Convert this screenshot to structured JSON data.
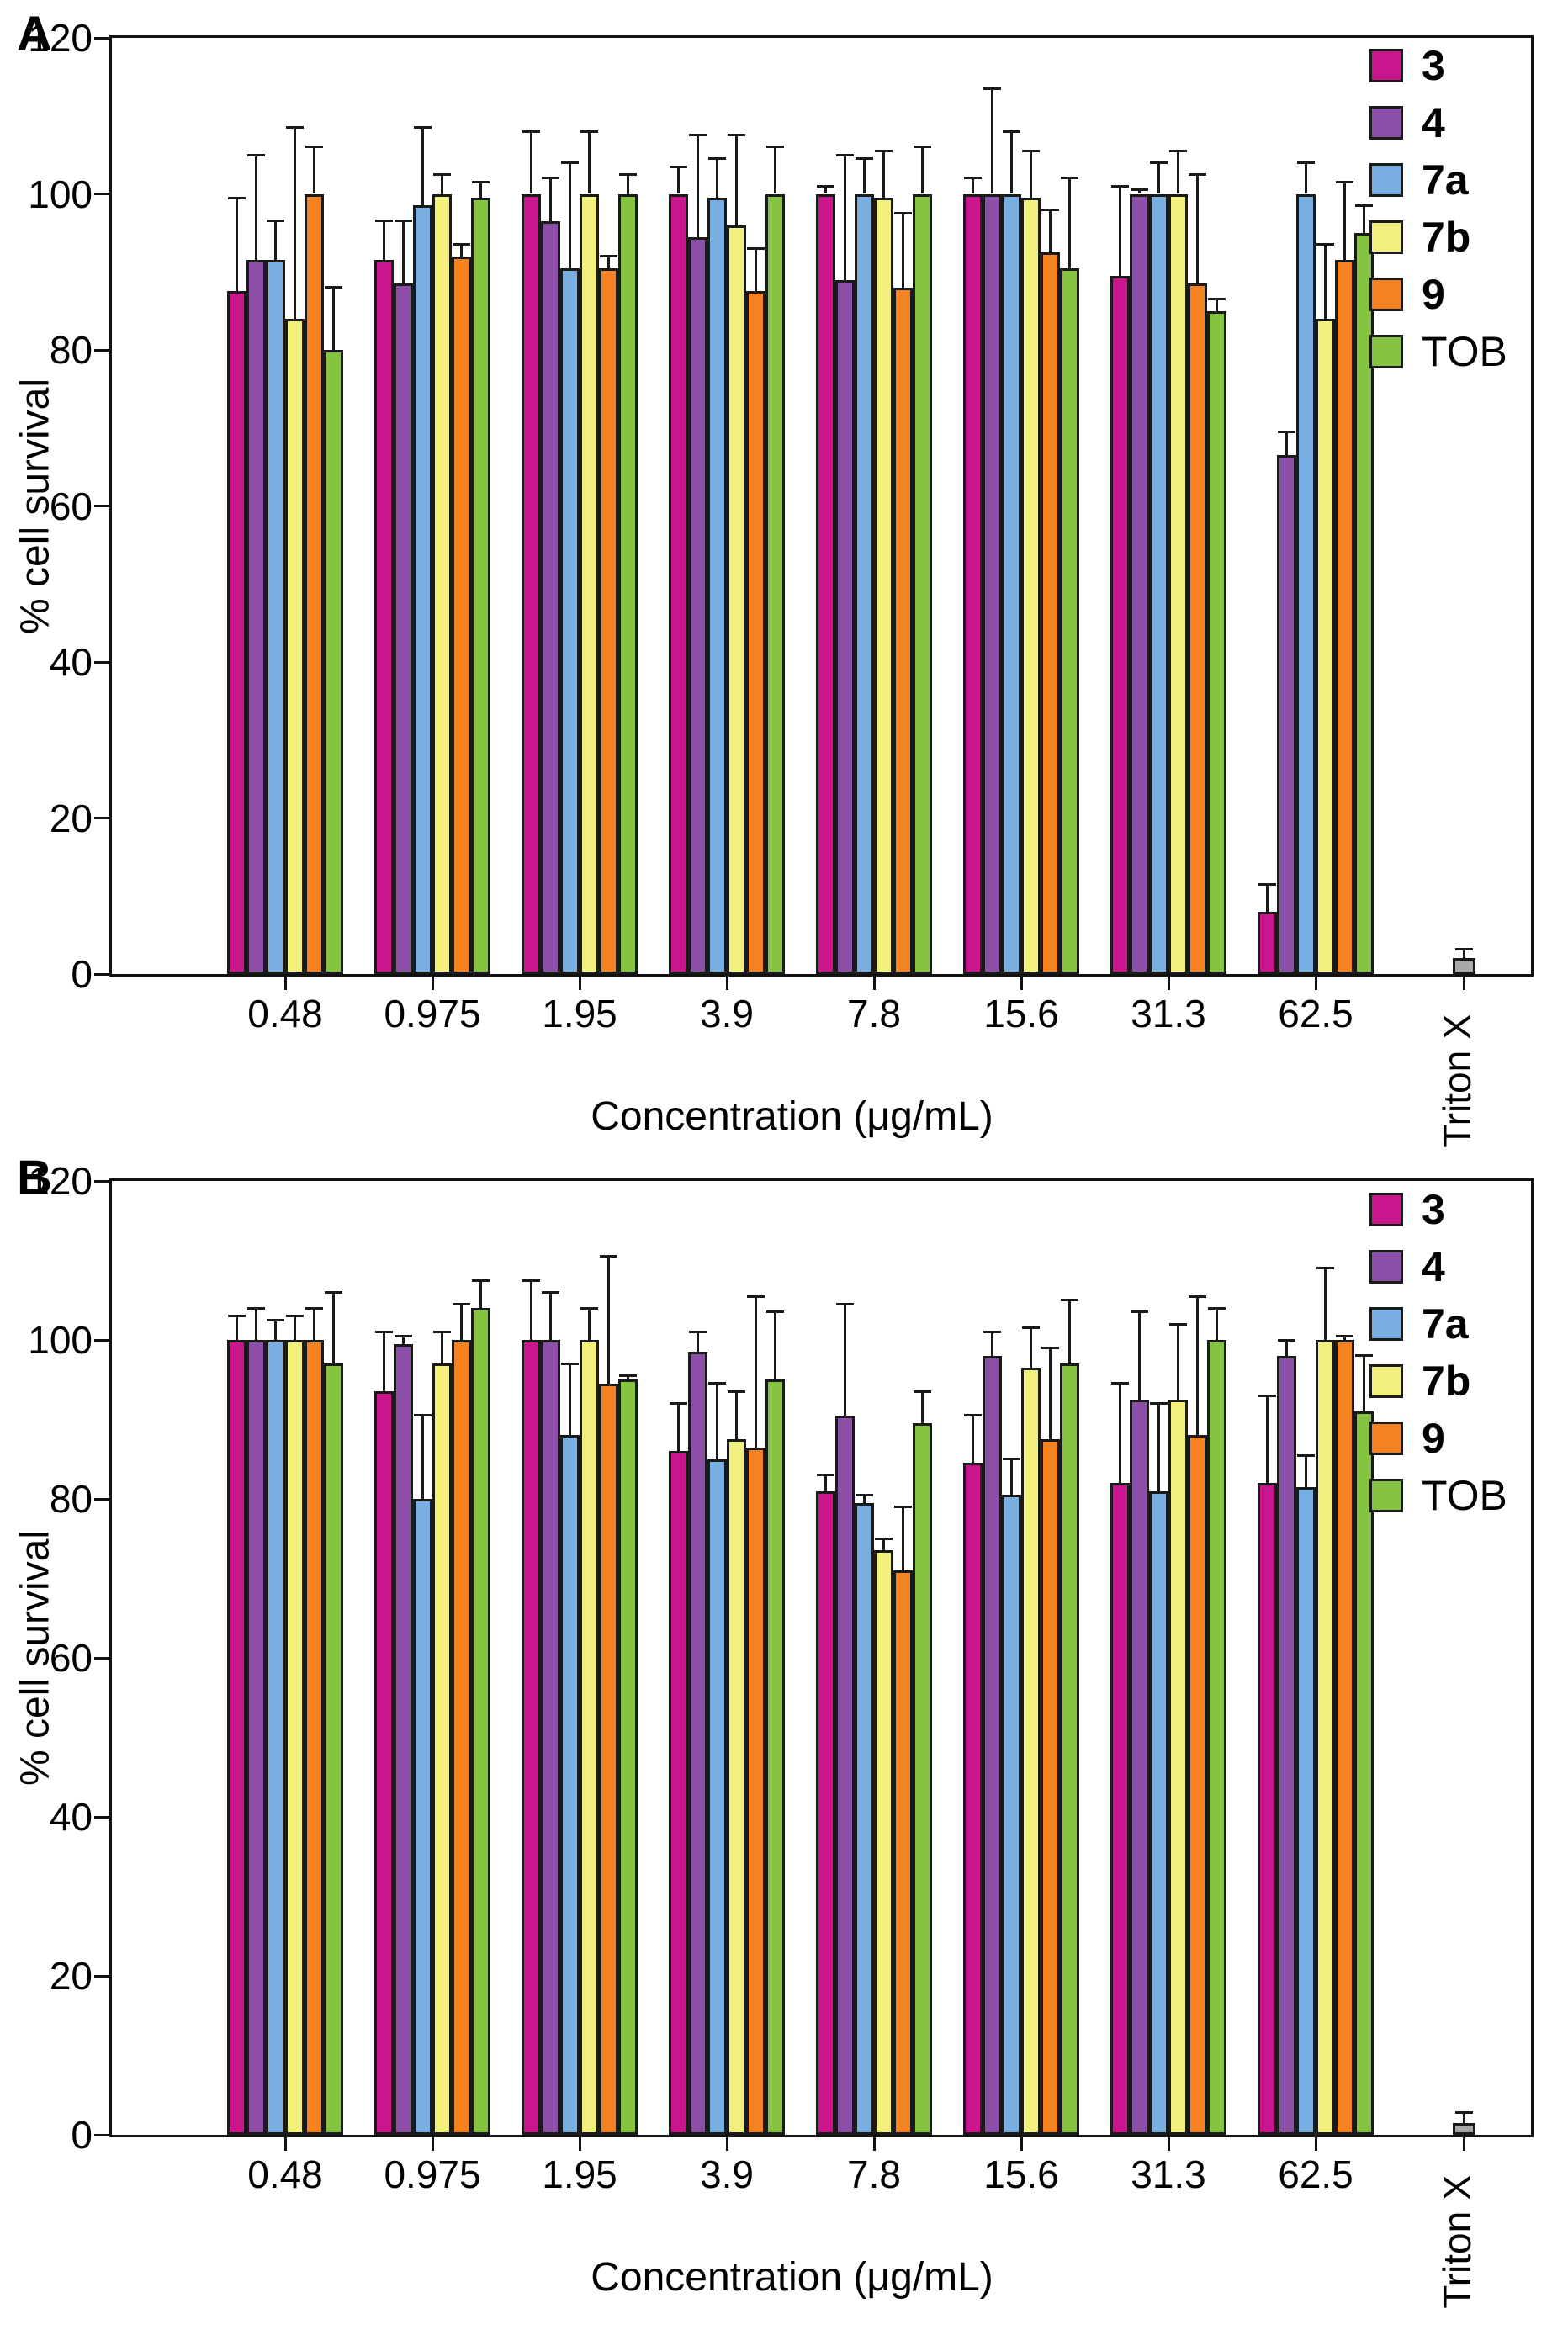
{
  "figure_title": "",
  "chart_data": [
    {
      "type": "bar",
      "panel_label": "A",
      "xlabel": "Concentration (μg/mL)",
      "ylabel": "% cell survival",
      "ylim": [
        0,
        120
      ],
      "yticks": [
        0,
        20,
        40,
        60,
        80,
        100,
        120
      ],
      "grid": false,
      "legend_position": "top-right-inside",
      "error_bars": "upper",
      "categories": [
        "0.48",
        "0.975",
        "1.95",
        "3.9",
        "7.8",
        "15.6",
        "31.3",
        "62.5"
      ],
      "control": {
        "name": "Triton X",
        "value": 2,
        "err_top": 3.2,
        "color": "#A9A9A9"
      },
      "series": [
        {
          "name": "3",
          "color": "#C9168C",
          "bold_label": true,
          "values": [
            87.5,
            91.5,
            100,
            100,
            100,
            100,
            89.5,
            8
          ],
          "err_top": [
            99.5,
            96.5,
            108,
            103.5,
            101,
            102,
            101,
            11.5
          ]
        },
        {
          "name": "4",
          "color": "#8C4FA8",
          "bold_label": true,
          "values": [
            91.5,
            88.5,
            96.5,
            94.5,
            89,
            100,
            100,
            66.5
          ],
          "err_top": [
            105,
            96.5,
            102,
            107.5,
            105,
            113.5,
            100.5,
            69.5
          ]
        },
        {
          "name": "7a",
          "color": "#79AFE0",
          "bold_label": true,
          "values": [
            91.5,
            98.5,
            90.5,
            99.5,
            100,
            100,
            100,
            100
          ],
          "err_top": [
            96.5,
            108.5,
            104,
            104.5,
            104.5,
            108,
            104,
            104
          ]
        },
        {
          "name": "7b",
          "color": "#F2F07D",
          "bold_label": true,
          "values": [
            84,
            100,
            100,
            96,
            99.5,
            99.5,
            100,
            84
          ],
          "err_top": [
            108.5,
            102.5,
            108,
            107.5,
            105.5,
            105.5,
            105.5,
            93.5
          ]
        },
        {
          "name": "9",
          "color": "#F58220",
          "bold_label": true,
          "values": [
            100,
            92,
            90.5,
            87.5,
            88,
            92.5,
            88.5,
            91.5
          ],
          "err_top": [
            106,
            93.5,
            92,
            93,
            97.5,
            98,
            102.5,
            101.5
          ]
        },
        {
          "name": "TOB",
          "color": "#84C441",
          "bold_label": false,
          "values": [
            80,
            99.5,
            100,
            100,
            100,
            90.5,
            85,
            95
          ],
          "err_top": [
            88,
            101.5,
            102.5,
            106,
            106,
            102,
            86.5,
            98.5
          ]
        }
      ]
    },
    {
      "type": "bar",
      "panel_label": "B",
      "xlabel": "Concentration (μg/mL)",
      "ylabel": "% cell survival",
      "ylim": [
        0,
        120
      ],
      "yticks": [
        0,
        20,
        40,
        60,
        80,
        100,
        120
      ],
      "grid": false,
      "legend_position": "top-right-inside",
      "error_bars": "upper",
      "categories": [
        "0.48",
        "0.975",
        "1.95",
        "3.9",
        "7.8",
        "15.6",
        "31.3",
        "62.5"
      ],
      "control": {
        "name": "Triton X",
        "value": 1.5,
        "err_top": 2.8,
        "color": "#A9A9A9"
      },
      "series": [
        {
          "name": "3",
          "color": "#C9168C",
          "bold_label": true,
          "values": [
            100,
            93.5,
            100,
            86,
            81,
            84.5,
            82,
            82
          ],
          "err_top": [
            103,
            101,
            107.5,
            92,
            83,
            90.5,
            94.5,
            93
          ]
        },
        {
          "name": "4",
          "color": "#8C4FA8",
          "bold_label": true,
          "values": [
            100,
            99.5,
            100,
            98.5,
            90.5,
            98,
            92.5,
            98
          ],
          "err_top": [
            104,
            100.5,
            106,
            101,
            104.5,
            101,
            103.5,
            100
          ]
        },
        {
          "name": "7a",
          "color": "#79AFE0",
          "bold_label": true,
          "values": [
            100,
            80,
            88,
            85,
            79.5,
            80.5,
            81,
            81.5
          ],
          "err_top": [
            102.5,
            90.5,
            97,
            94.5,
            80.5,
            85,
            92,
            85.5
          ]
        },
        {
          "name": "7b",
          "color": "#F2F07D",
          "bold_label": true,
          "values": [
            100,
            97,
            100,
            87.5,
            73.5,
            96.5,
            92.5,
            100
          ],
          "err_top": [
            103,
            101,
            104,
            93.5,
            75,
            101.5,
            102,
            109
          ]
        },
        {
          "name": "9",
          "color": "#F58220",
          "bold_label": true,
          "values": [
            100,
            100,
            94.5,
            86.5,
            71,
            87.5,
            88,
            100
          ],
          "err_top": [
            104,
            104.5,
            110.5,
            105.5,
            79,
            99,
            105.5,
            100.5
          ]
        },
        {
          "name": "TOB",
          "color": "#84C441",
          "bold_label": false,
          "values": [
            97,
            104,
            95,
            95,
            89.5,
            97,
            100,
            91
          ],
          "err_top": [
            106,
            107.5,
            95.5,
            103.5,
            93.5,
            105,
            104,
            98
          ]
        }
      ]
    }
  ]
}
